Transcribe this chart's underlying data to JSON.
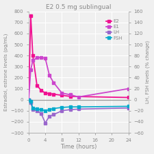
{
  "title": "E2 0.5 mg sublingual",
  "xlabel": "Time (hours)",
  "ylabel_left": "Estradiol, estrone levels (pg/mL)",
  "ylabel_right": "LH, FSH levels (% change)",
  "ylim_left": [
    -300,
    800
  ],
  "ylim_right": [
    -60,
    160
  ],
  "xticks": [
    0,
    4,
    8,
    12,
    16,
    20,
    24
  ],
  "xlim": [
    0,
    24
  ],
  "series": {
    "E2": {
      "x": [
        0,
        0.5,
        1,
        2,
        3,
        4,
        5,
        6,
        8,
        10,
        24
      ],
      "y": [
        0,
        760,
        400,
        130,
        85,
        60,
        55,
        50,
        40,
        30,
        20
      ],
      "color": "#f01090",
      "marker": "s",
      "markersize": 2.5,
      "linewidth": 1.3,
      "axis": "left"
    },
    "E1": {
      "x": [
        0,
        0.5,
        1,
        2,
        3,
        4,
        5,
        6,
        8,
        10,
        12,
        24
      ],
      "y": [
        0,
        270,
        355,
        380,
        385,
        375,
        220,
        155,
        60,
        45,
        25,
        100
      ],
      "color": "#cc44cc",
      "marker": "s",
      "markersize": 2.5,
      "linewidth": 1.3,
      "axis": "left"
    },
    "LH": {
      "x": [
        0,
        0.5,
        1,
        2,
        3,
        4,
        5,
        6,
        8,
        10,
        12,
        24
      ],
      "y": [
        0,
        -5,
        -18,
        -20,
        -25,
        -42,
        -30,
        -27,
        -20,
        -18,
        -17,
        -15
      ],
      "color": "#9966cc",
      "marker": "s",
      "markersize": 2.5,
      "linewidth": 1.2,
      "axis": "right"
    },
    "FSH": {
      "x": [
        0,
        0.5,
        1,
        2,
        3,
        4,
        5,
        6,
        8,
        10,
        12,
        24
      ],
      "y": [
        0,
        -3,
        -15,
        -17,
        -18,
        -20,
        -18,
        -16,
        -14,
        -13,
        -13,
        -12
      ],
      "color": "#00aacc",
      "marker": "s",
      "markersize": 2.5,
      "linewidth": 1.2,
      "axis": "right"
    }
  },
  "bg_color": "#f0f0f0",
  "grid_color": "#ffffff"
}
